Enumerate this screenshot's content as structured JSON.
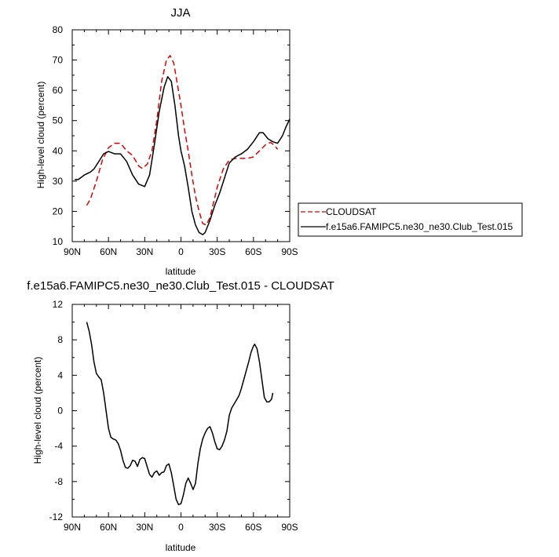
{
  "chart_data": [
    {
      "type": "line",
      "title": "JJA",
      "xlabel": "latitude",
      "ylabel": "High-level cloud (percent)",
      "xlim": [
        -90,
        90
      ],
      "ylim": [
        10,
        80
      ],
      "x_ticks": [
        {
          "value": -90,
          "label": "90N"
        },
        {
          "value": -60,
          "label": "60N"
        },
        {
          "value": -30,
          "label": "30N"
        },
        {
          "value": 0,
          "label": "0"
        },
        {
          "value": 30,
          "label": "30S"
        },
        {
          "value": 60,
          "label": "60S"
        },
        {
          "value": 90,
          "label": "90S"
        }
      ],
      "y_ticks": [
        {
          "value": 10,
          "label": "10"
        },
        {
          "value": 20,
          "label": "20"
        },
        {
          "value": 30,
          "label": "30"
        },
        {
          "value": 40,
          "label": "40"
        },
        {
          "value": 50,
          "label": "50"
        },
        {
          "value": 60,
          "label": "60"
        },
        {
          "value": 70,
          "label": "70"
        },
        {
          "value": 80,
          "label": "80"
        }
      ],
      "grid": false,
      "legend_position": "right",
      "series": [
        {
          "name": "CLOUDSAT",
          "color": "#e00000",
          "dash": true,
          "points": [
            [
              -78,
              22
            ],
            [
              -75,
              24
            ],
            [
              -70,
              30
            ],
            [
              -65,
              37
            ],
            [
              -60,
              41
            ],
            [
              -55,
              42.5
            ],
            [
              -50,
              42.5
            ],
            [
              -45,
              40
            ],
            [
              -40,
              38.5
            ],
            [
              -35,
              35
            ],
            [
              -32,
              34.2
            ],
            [
              -28,
              35.5
            ],
            [
              -24,
              40
            ],
            [
              -20,
              50
            ],
            [
              -16,
              63
            ],
            [
              -12,
              70
            ],
            [
              -9,
              71.5
            ],
            [
              -6,
              69
            ],
            [
              -3,
              62
            ],
            [
              0,
              55
            ],
            [
              3,
              47
            ],
            [
              6,
              40
            ],
            [
              9,
              32
            ],
            [
              12,
              25
            ],
            [
              15,
              20
            ],
            [
              18,
              16
            ],
            [
              21,
              15.5
            ],
            [
              24,
              18
            ],
            [
              27,
              23
            ],
            [
              30,
              28
            ],
            [
              35,
              34
            ],
            [
              40,
              37
            ],
            [
              45,
              37.5
            ],
            [
              50,
              37.5
            ],
            [
              55,
              37.5
            ],
            [
              60,
              38
            ],
            [
              65,
              40
            ],
            [
              70,
              42
            ],
            [
              74,
              42.8
            ],
            [
              77,
              42
            ],
            [
              80,
              40.5
            ]
          ]
        },
        {
          "name": "f.e15a6.FAMIPC5.ne30_ne30.Club_Test.015",
          "color": "#000000",
          "dash": false,
          "points": [
            [
              -88,
              30.5
            ],
            [
              -85,
              30.5
            ],
            [
              -80,
              32
            ],
            [
              -75,
              33
            ],
            [
              -72,
              34
            ],
            [
              -68,
              36.5
            ],
            [
              -64,
              39
            ],
            [
              -60,
              39.8
            ],
            [
              -55,
              39
            ],
            [
              -50,
              39
            ],
            [
              -45,
              36.5
            ],
            [
              -40,
              32
            ],
            [
              -35,
              29
            ],
            [
              -32,
              28.5
            ],
            [
              -30,
              28.2
            ],
            [
              -26,
              32
            ],
            [
              -22,
              42
            ],
            [
              -18,
              53
            ],
            [
              -14,
              61
            ],
            [
              -11,
              64.5
            ],
            [
              -8,
              63
            ],
            [
              -5,
              55
            ],
            [
              -2,
              45
            ],
            [
              0,
              40
            ],
            [
              3,
              35
            ],
            [
              6,
              28
            ],
            [
              9,
              20
            ],
            [
              12,
              15.5
            ],
            [
              15,
              13
            ],
            [
              18,
              12.3
            ],
            [
              20,
              13
            ],
            [
              24,
              17
            ],
            [
              28,
              22
            ],
            [
              32,
              26
            ],
            [
              36,
              31
            ],
            [
              40,
              36
            ],
            [
              45,
              38
            ],
            [
              50,
              39
            ],
            [
              55,
              40.5
            ],
            [
              60,
              43
            ],
            [
              65,
              46
            ],
            [
              68,
              46
            ],
            [
              72,
              44
            ],
            [
              76,
              43
            ],
            [
              80,
              42.5
            ],
            [
              84,
              45
            ],
            [
              87,
              48
            ],
            [
              90,
              50.5
            ]
          ]
        }
      ]
    },
    {
      "type": "line",
      "title": "f.e15a6.FAMIPC5.ne30_ne30.Club_Test.015 - CLOUDSAT",
      "xlabel": "latitude",
      "ylabel": "High-level cloud (percent)",
      "xlim": [
        -90,
        90
      ],
      "ylim": [
        -12,
        12
      ],
      "x_ticks": [
        {
          "value": -90,
          "label": "90N"
        },
        {
          "value": -60,
          "label": "60N"
        },
        {
          "value": -30,
          "label": "30N"
        },
        {
          "value": 0,
          "label": "0"
        },
        {
          "value": 30,
          "label": "30S"
        },
        {
          "value": 60,
          "label": "60S"
        },
        {
          "value": 90,
          "label": "90S"
        }
      ],
      "y_ticks": [
        {
          "value": -12,
          "label": "-12"
        },
        {
          "value": -8,
          "label": "-8"
        },
        {
          "value": -4,
          "label": "-4"
        },
        {
          "value": 0,
          "label": "0"
        },
        {
          "value": 4,
          "label": "4"
        },
        {
          "value": 8,
          "label": "8"
        },
        {
          "value": 12,
          "label": "12"
        }
      ],
      "grid": false,
      "series": [
        {
          "color": "#000000",
          "dash": false,
          "points": [
            [
              -78,
              10
            ],
            [
              -76,
              9
            ],
            [
              -74,
              7.5
            ],
            [
              -72,
              5.5
            ],
            [
              -70,
              4.2
            ],
            [
              -68,
              3.8
            ],
            [
              -66,
              3.5
            ],
            [
              -64,
              2
            ],
            [
              -62,
              0
            ],
            [
              -60,
              -2
            ],
            [
              -58,
              -3
            ],
            [
              -56,
              -3.2
            ],
            [
              -54,
              -3.3
            ],
            [
              -52,
              -3.7
            ],
            [
              -50,
              -4.5
            ],
            [
              -48,
              -5.6
            ],
            [
              -46,
              -6.4
            ],
            [
              -44,
              -6.5
            ],
            [
              -42,
              -6.2
            ],
            [
              -40,
              -5.6
            ],
            [
              -38,
              -5.7
            ],
            [
              -36,
              -6.3
            ],
            [
              -34,
              -5.5
            ],
            [
              -32,
              -5.3
            ],
            [
              -30,
              -5.4
            ],
            [
              -28,
              -6.3
            ],
            [
              -26,
              -7.2
            ],
            [
              -24,
              -7.5
            ],
            [
              -22,
              -7
            ],
            [
              -20,
              -6.8
            ],
            [
              -18,
              -7.3
            ],
            [
              -16,
              -7
            ],
            [
              -14,
              -6.9
            ],
            [
              -12,
              -6.2
            ],
            [
              -10,
              -6
            ],
            [
              -8,
              -7
            ],
            [
              -6,
              -8.5
            ],
            [
              -4,
              -10
            ],
            [
              -2,
              -10.6
            ],
            [
              0,
              -10.5
            ],
            [
              2,
              -9.5
            ],
            [
              4,
              -8.2
            ],
            [
              6,
              -7.6
            ],
            [
              8,
              -8.2
            ],
            [
              10,
              -8.9
            ],
            [
              12,
              -8.2
            ],
            [
              14,
              -6
            ],
            [
              16,
              -4.3
            ],
            [
              18,
              -3.2
            ],
            [
              20,
              -2.5
            ],
            [
              22,
              -2
            ],
            [
              24,
              -1.8
            ],
            [
              26,
              -2.5
            ],
            [
              28,
              -3.5
            ],
            [
              30,
              -4.3
            ],
            [
              32,
              -4.4
            ],
            [
              34,
              -4
            ],
            [
              36,
              -3.3
            ],
            [
              38,
              -2.3
            ],
            [
              40,
              -0.5
            ],
            [
              42,
              0.3
            ],
            [
              45,
              1
            ],
            [
              48,
              1.7
            ],
            [
              50,
              2.5
            ],
            [
              52,
              3.5
            ],
            [
              54,
              4.5
            ],
            [
              56,
              5.5
            ],
            [
              58,
              6.6
            ],
            [
              60,
              7.3
            ],
            [
              61,
              7.5
            ],
            [
              63,
              7
            ],
            [
              65,
              5.5
            ],
            [
              67,
              3.5
            ],
            [
              69,
              1.5
            ],
            [
              71,
              1
            ],
            [
              73,
              1
            ],
            [
              75,
              1.3
            ],
            [
              76,
              2
            ]
          ]
        }
      ]
    }
  ]
}
